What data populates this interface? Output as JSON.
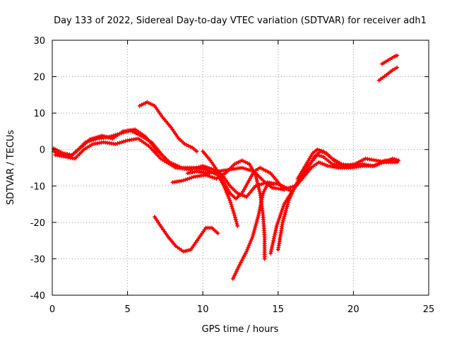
{
  "chart_data": {
    "type": "scatter",
    "title": "Day 133 of 2022, Sidereal Day-to-day VTEC variation (SDTVAR) for receiver adh1",
    "xlabel": "GPS time / hours",
    "ylabel": "SDTVAR / TECUs",
    "xlim": [
      0,
      25
    ],
    "ylim": [
      -40,
      30
    ],
    "xticks": [
      "0",
      "5",
      "10",
      "15",
      "20",
      "25"
    ],
    "yticks": [
      "30",
      "20",
      "10",
      "0",
      "-10",
      "-20",
      "-30",
      "-40"
    ],
    "grid": true,
    "color": "#ff0000",
    "series": [
      {
        "points": [
          [
            0.1,
            -0.5
          ],
          [
            0.6,
            -1.5
          ],
          [
            1.2,
            -2.0
          ],
          [
            1.6,
            -0.5
          ],
          [
            2.2,
            2.0
          ],
          [
            3.0,
            3.0
          ],
          [
            3.8,
            3.5
          ],
          [
            4.6,
            4.5
          ],
          [
            5.2,
            5.2
          ],
          [
            5.8,
            4.0
          ],
          [
            6.6,
            2.0
          ],
          [
            7.3,
            -1.5
          ],
          [
            7.9,
            -4.0
          ]
        ]
      },
      {
        "points": [
          [
            0.1,
            0.3
          ],
          [
            0.7,
            -1.0
          ],
          [
            1.3,
            -1.5
          ],
          [
            1.9,
            0.5
          ],
          [
            2.5,
            2.8
          ],
          [
            3.3,
            3.8
          ],
          [
            4.0,
            3.0
          ],
          [
            4.7,
            5.0
          ],
          [
            5.5,
            5.5
          ],
          [
            6.2,
            3.5
          ],
          [
            7.0,
            -0.5
          ],
          [
            7.8,
            -3.5
          ],
          [
            8.6,
            -5.0
          ],
          [
            9.4,
            -5.0
          ],
          [
            10.2,
            -5.5
          ],
          [
            11.0,
            -7.0
          ],
          [
            11.4,
            -10.0
          ],
          [
            11.8,
            -14.0
          ],
          [
            12.1,
            -18.0
          ],
          [
            12.3,
            -21.0
          ]
        ]
      },
      {
        "points": [
          [
            0.2,
            -1.5
          ],
          [
            0.9,
            -2.0
          ],
          [
            1.5,
            -2.5
          ],
          [
            2.1,
            0.0
          ],
          [
            2.7,
            1.5
          ],
          [
            3.4,
            2.0
          ],
          [
            4.2,
            1.5
          ],
          [
            5.0,
            2.5
          ],
          [
            5.7,
            3.0
          ],
          [
            6.4,
            1.0
          ],
          [
            7.2,
            -2.5
          ],
          [
            8.2,
            -5.0
          ],
          [
            9.2,
            -5.5
          ],
          [
            10.0,
            -4.5
          ],
          [
            10.7,
            -5.5
          ],
          [
            11.3,
            -7.0
          ],
          [
            11.8,
            -10.0
          ],
          [
            12.3,
            -12.0
          ],
          [
            12.9,
            -13.0
          ],
          [
            13.5,
            -10.0
          ],
          [
            14.3,
            -9.0
          ],
          [
            15.0,
            -9.5
          ],
          [
            15.8,
            -11.0
          ]
        ]
      },
      {
        "points": [
          [
            5.8,
            12.0
          ],
          [
            6.3,
            13.0
          ],
          [
            6.8,
            12.0
          ],
          [
            7.3,
            9.0
          ],
          [
            7.9,
            6.0
          ],
          [
            8.4,
            3.0
          ],
          [
            8.8,
            1.5
          ],
          [
            9.3,
            0.5
          ],
          [
            9.6,
            -0.5
          ]
        ]
      },
      {
        "points": [
          [
            10.0,
            -0.5
          ],
          [
            10.5,
            -3.0
          ],
          [
            11.0,
            -6.0
          ],
          [
            11.4,
            -9.0
          ],
          [
            11.8,
            -12.0
          ],
          [
            12.2,
            -13.5
          ],
          [
            12.6,
            -12.0
          ],
          [
            13.0,
            -9.0
          ],
          [
            13.4,
            -6.0
          ],
          [
            13.8,
            -5.0
          ],
          [
            14.5,
            -6.5
          ],
          [
            15.2,
            -10.0
          ],
          [
            15.9,
            -11.5
          ]
        ]
      },
      {
        "points": [
          [
            8.0,
            -9.0
          ],
          [
            8.7,
            -8.5
          ],
          [
            9.4,
            -7.5
          ],
          [
            10.2,
            -7.0
          ],
          [
            10.9,
            -8.0
          ],
          [
            11.5,
            -6.5
          ],
          [
            12.1,
            -4.0
          ],
          [
            12.6,
            -3.0
          ],
          [
            13.1,
            -4.0
          ],
          [
            13.5,
            -7.0
          ],
          [
            13.8,
            -12.0
          ],
          [
            14.0,
            -18.0
          ],
          [
            14.1,
            -24.0
          ],
          [
            14.1,
            -30.0
          ]
        ]
      },
      {
        "points": [
          [
            9.0,
            -6.5
          ],
          [
            9.6,
            -6.0
          ],
          [
            10.3,
            -6.5
          ],
          [
            11.0,
            -6.0
          ],
          [
            11.8,
            -5.5
          ],
          [
            12.6,
            -5.0
          ],
          [
            13.4,
            -6.0
          ],
          [
            14.0,
            -8.5
          ],
          [
            14.6,
            -10.5
          ],
          [
            15.4,
            -11.0
          ],
          [
            16.1,
            -10.0
          ],
          [
            16.6,
            -8.0
          ],
          [
            17.0,
            -5.0
          ],
          [
            17.4,
            -2.0
          ],
          [
            17.8,
            -0.5
          ],
          [
            18.2,
            -1.0
          ],
          [
            18.7,
            -3.0
          ],
          [
            19.2,
            -4.0
          ],
          [
            19.9,
            -4.5
          ],
          [
            20.6,
            -4.0
          ],
          [
            21.3,
            -4.5
          ],
          [
            22.0,
            -3.5
          ],
          [
            22.6,
            -2.5
          ],
          [
            23.0,
            -3.0
          ]
        ]
      },
      {
        "points": [
          [
            6.8,
            -18.5
          ],
          [
            7.2,
            -21.0
          ],
          [
            7.7,
            -24.0
          ],
          [
            8.2,
            -26.5
          ],
          [
            8.7,
            -28.0
          ],
          [
            9.2,
            -27.5
          ],
          [
            9.7,
            -24.5
          ],
          [
            10.2,
            -21.5
          ],
          [
            10.6,
            -21.5
          ],
          [
            11.0,
            -23.0
          ]
        ]
      },
      {
        "points": [
          [
            12.0,
            -35.5
          ],
          [
            12.4,
            -32.0
          ],
          [
            12.9,
            -28.0
          ],
          [
            13.3,
            -24.0
          ],
          [
            13.7,
            -18.0
          ],
          [
            14.0,
            -12.0
          ],
          [
            14.3,
            -9.5
          ],
          [
            14.7,
            -9.5
          ]
        ]
      },
      {
        "points": [
          [
            14.5,
            -28.5
          ],
          [
            14.9,
            -21.0
          ],
          [
            15.4,
            -15.0
          ],
          [
            16.0,
            -11.0
          ],
          [
            16.6,
            -8.0
          ],
          [
            17.2,
            -5.0
          ],
          [
            17.7,
            -3.5
          ],
          [
            18.3,
            -4.5
          ],
          [
            19.0,
            -5.0
          ],
          [
            19.8,
            -5.0
          ],
          [
            20.6,
            -4.5
          ],
          [
            21.4,
            -4.5
          ],
          [
            22.1,
            -3.0
          ],
          [
            22.8,
            -3.0
          ]
        ]
      },
      {
        "points": [
          [
            15.0,
            -27.5
          ],
          [
            15.3,
            -20.0
          ],
          [
            15.7,
            -14.0
          ],
          [
            16.2,
            -9.5
          ],
          [
            16.7,
            -6.0
          ],
          [
            17.2,
            -3.5
          ],
          [
            17.6,
            -1.5
          ],
          [
            18.0,
            -2.0
          ],
          [
            18.6,
            -4.0
          ],
          [
            19.3,
            -4.5
          ],
          [
            20.1,
            -4.0
          ],
          [
            20.8,
            -2.5
          ],
          [
            21.5,
            -3.0
          ],
          [
            22.2,
            -3.5
          ],
          [
            22.9,
            -3.5
          ]
        ]
      },
      {
        "points": [
          [
            16.3,
            -8.0
          ],
          [
            16.8,
            -4.5
          ],
          [
            17.3,
            -1.0
          ],
          [
            17.6,
            0.0
          ],
          [
            18.0,
            -0.5
          ],
          [
            18.6,
            -2.5
          ],
          [
            19.2,
            -4.0
          ]
        ]
      },
      {
        "points": [
          [
            21.7,
            19.0
          ],
          [
            22.2,
            20.5
          ],
          [
            22.6,
            21.8
          ],
          [
            22.9,
            22.5
          ]
        ]
      },
      {
        "points": [
          [
            21.9,
            23.5
          ],
          [
            22.3,
            24.5
          ],
          [
            22.7,
            25.5
          ],
          [
            22.9,
            25.8
          ]
        ]
      }
    ]
  }
}
